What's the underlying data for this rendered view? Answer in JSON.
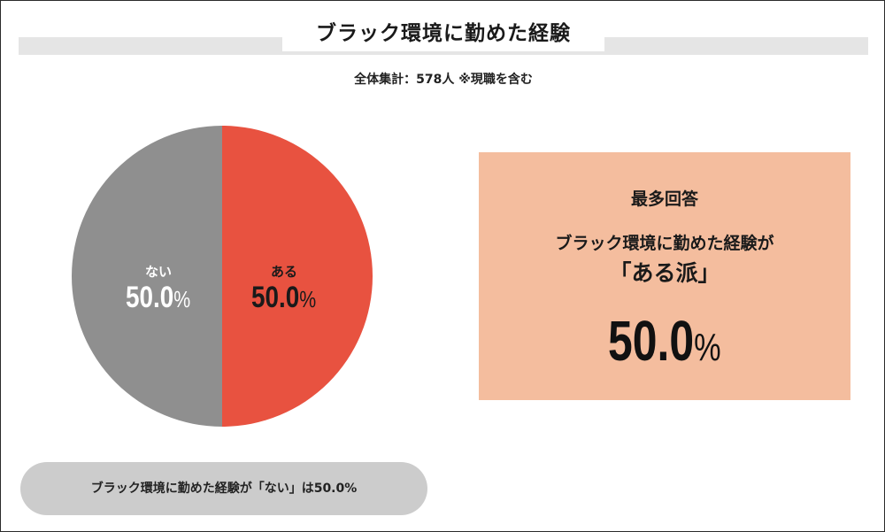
{
  "header": {
    "title": "ブラック環境に勤めた経験",
    "subtitle": "全体集計：578人 ※現職を含む"
  },
  "chart_data": {
    "type": "pie",
    "title": "ブラック環境に勤めた経験",
    "categories": [
      "ある",
      "ない"
    ],
    "values": [
      50.0,
      50.0
    ],
    "unit": "%",
    "colors": {
      "ある": "#e85240",
      "ない": "#8f8f8f"
    },
    "labels": [
      {
        "category": "ない",
        "percent_text": "50.0",
        "percent_sign": "%"
      },
      {
        "category": "ある",
        "percent_text": "50.0",
        "percent_sign": "%"
      }
    ]
  },
  "highlight": {
    "heading": "最多回答",
    "line1": "ブラック環境に勤めた経験が",
    "line2": "「ある派」",
    "value": "50.0",
    "value_sign": "%",
    "background_color": "#f4bd9e"
  },
  "footnote": {
    "text": "ブラック環境に勤めた経験が「ない」は50.0%"
  }
}
